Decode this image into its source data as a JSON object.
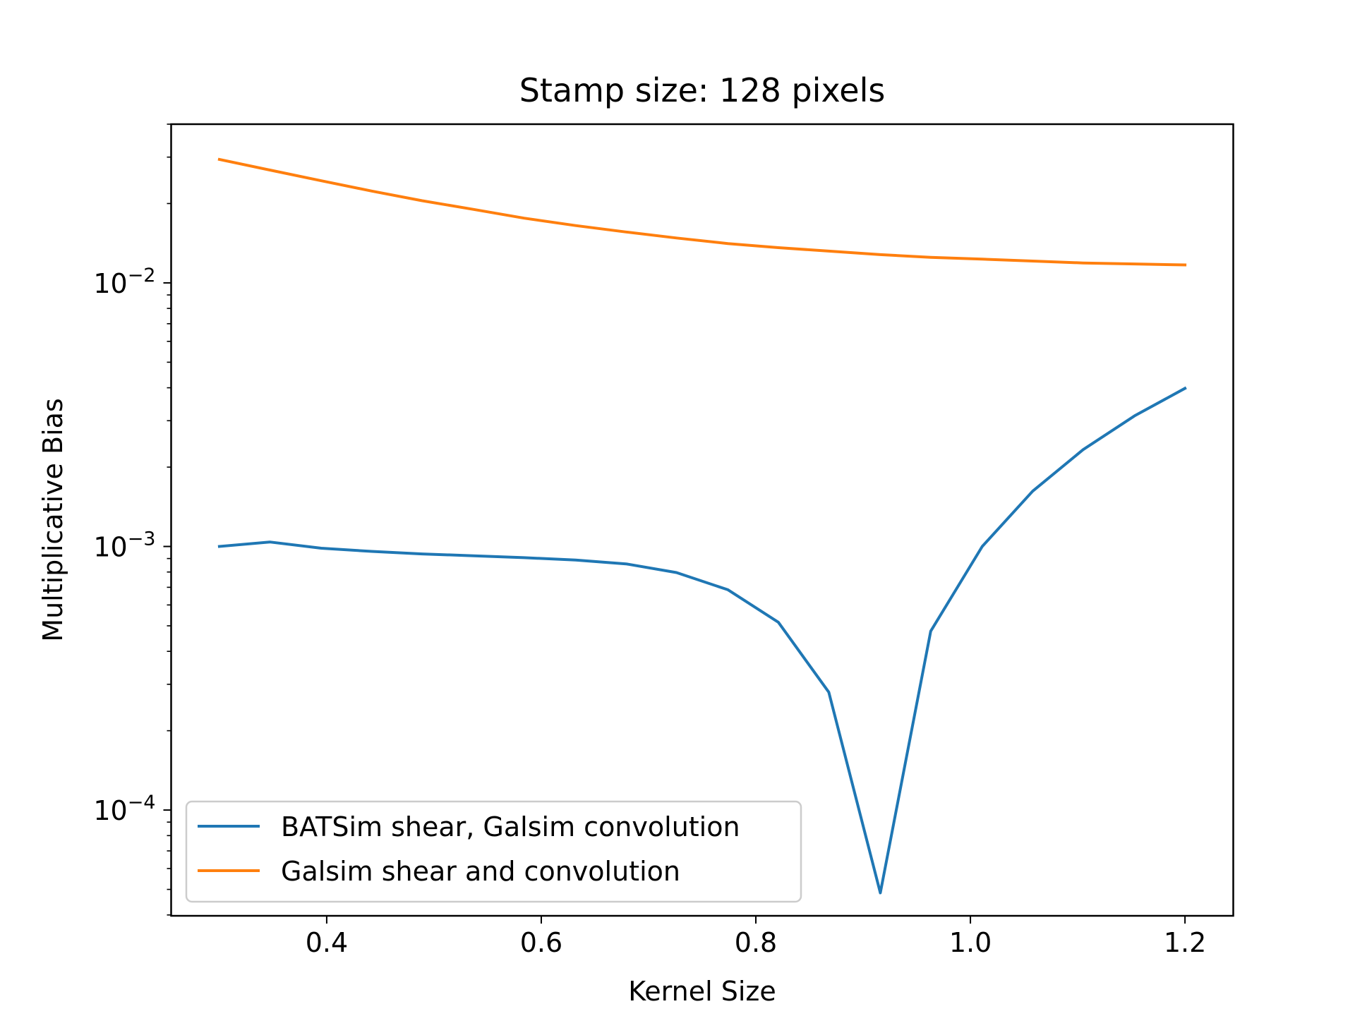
{
  "chart_data": {
    "type": "line",
    "title": "Stamp size: 128 pixels",
    "xlabel": "Kernel Size",
    "ylabel": "Multiplicative Bias",
    "yscale": "log",
    "xlim": [
      0.255,
      1.245
    ],
    "ylim": [
      3.97e-05,
      0.04
    ],
    "xticks": [
      {
        "value": 0.4,
        "label": "0.4"
      },
      {
        "value": 0.6,
        "label": "0.6"
      },
      {
        "value": 0.8,
        "label": "0.8"
      },
      {
        "value": 1.0,
        "label": "1.0"
      },
      {
        "value": 1.2,
        "label": "1.2"
      }
    ],
    "yticks": [
      {
        "value": 0.0001,
        "base": "10",
        "exp": "−4"
      },
      {
        "value": 0.001,
        "base": "10",
        "exp": "−3"
      },
      {
        "value": 0.01,
        "base": "10",
        "exp": "−2"
      }
    ],
    "grid": false,
    "legend_position": "lower-left",
    "series": [
      {
        "name": "BATSim shear, Galsim convolution",
        "color": "#1f77b4",
        "x": [
          0.3,
          0.347,
          0.395,
          0.442,
          0.489,
          0.537,
          0.584,
          0.632,
          0.679,
          0.726,
          0.774,
          0.821,
          0.868,
          0.916,
          0.963,
          1.011,
          1.058,
          1.105,
          1.153,
          1.2
        ],
        "y": [
          0.001,
          0.00104,
          0.000985,
          0.000958,
          0.000937,
          0.000922,
          0.000907,
          0.000888,
          0.000859,
          0.000796,
          0.000685,
          0.000516,
          0.00028,
          4.85e-05,
          0.000477,
          0.001,
          0.00162,
          0.00233,
          0.00313,
          0.00398
        ]
      },
      {
        "name": "Galsim shear and convolution",
        "color": "#ff7f0e",
        "x": [
          0.3,
          0.347,
          0.395,
          0.442,
          0.489,
          0.537,
          0.584,
          0.632,
          0.679,
          0.726,
          0.774,
          0.821,
          0.868,
          0.916,
          0.963,
          1.011,
          1.058,
          1.105,
          1.153,
          1.2
        ],
        "y": [
          0.0294,
          0.0268,
          0.0244,
          0.0223,
          0.0205,
          0.019,
          0.0176,
          0.0165,
          0.0156,
          0.0148,
          0.0141,
          0.0136,
          0.0132,
          0.0128,
          0.0125,
          0.0123,
          0.0121,
          0.0119,
          0.0118,
          0.0117
        ]
      }
    ]
  }
}
